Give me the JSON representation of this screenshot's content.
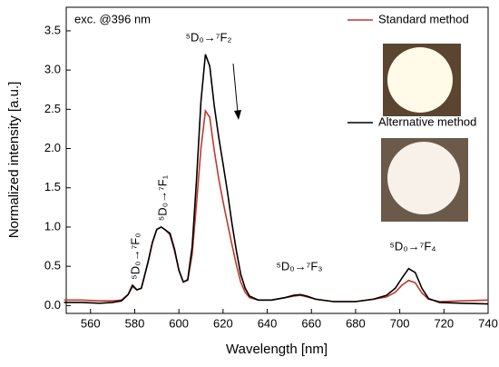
{
  "chart_data": {
    "type": "line",
    "xlabel": "Wavelength [nm]",
    "ylabel": "Normalized intensity [a.u.]",
    "x": [
      548,
      556,
      564,
      570,
      574,
      577,
      579,
      581,
      583,
      586,
      588,
      590,
      592,
      594,
      596,
      598,
      600,
      602,
      604,
      606,
      608,
      610,
      612,
      614,
      616,
      618,
      620,
      622,
      624,
      626,
      628,
      630,
      632,
      636,
      642,
      648,
      652,
      655,
      658,
      662,
      670,
      680,
      688,
      694,
      698,
      701,
      704,
      707,
      710,
      713,
      718,
      728,
      740
    ],
    "series": [
      {
        "name": "Standard method",
        "color": "#c0392b",
        "values": [
          0.07,
          0.07,
          0.06,
          0.06,
          0.07,
          0.14,
          0.24,
          0.2,
          0.22,
          0.55,
          0.8,
          0.97,
          1.0,
          0.96,
          0.9,
          0.7,
          0.45,
          0.3,
          0.32,
          0.65,
          1.3,
          2.0,
          2.48,
          2.4,
          1.98,
          1.62,
          1.32,
          1.05,
          0.78,
          0.52,
          0.3,
          0.17,
          0.1,
          0.07,
          0.07,
          0.1,
          0.12,
          0.13,
          0.11,
          0.08,
          0.05,
          0.05,
          0.08,
          0.11,
          0.17,
          0.26,
          0.32,
          0.29,
          0.16,
          0.08,
          0.05,
          0.06,
          0.07
        ]
      },
      {
        "name": "Alternative method",
        "color": "#000000",
        "values": [
          0.04,
          0.04,
          0.03,
          0.04,
          0.06,
          0.14,
          0.26,
          0.2,
          0.22,
          0.55,
          0.8,
          0.97,
          1.0,
          0.96,
          0.92,
          0.72,
          0.45,
          0.3,
          0.33,
          0.75,
          1.6,
          2.6,
          3.2,
          3.05,
          2.55,
          2.15,
          1.8,
          1.45,
          1.05,
          0.7,
          0.4,
          0.22,
          0.12,
          0.07,
          0.07,
          0.1,
          0.13,
          0.14,
          0.12,
          0.08,
          0.05,
          0.05,
          0.08,
          0.13,
          0.22,
          0.35,
          0.47,
          0.42,
          0.22,
          0.09,
          0.04,
          0.03,
          0.02
        ]
      }
    ],
    "xlim": [
      549,
      740
    ],
    "xticks": [
      560,
      580,
      600,
      620,
      640,
      660,
      680,
      700,
      720,
      740
    ],
    "ylim": [
      -0.1,
      3.8
    ],
    "yticks": [
      {
        "value": 0,
        "label": "0.0"
      },
      0.5,
      {
        "value": 1,
        "label": "1.0"
      },
      1.5,
      {
        "value": 2,
        "label": "2.0"
      },
      2.5,
      {
        "value": 3,
        "label": "3.0"
      },
      3.5
    ],
    "legend": "upper right",
    "annotations": [
      "exc. @396 nm",
      "⁵D₀→⁷F₂",
      "⁵D₀→⁷F₁",
      "⁵D₀→⁷F₀",
      "⁵D₀→⁷F₃",
      "⁵D₀→⁷F₄"
    ]
  }
}
